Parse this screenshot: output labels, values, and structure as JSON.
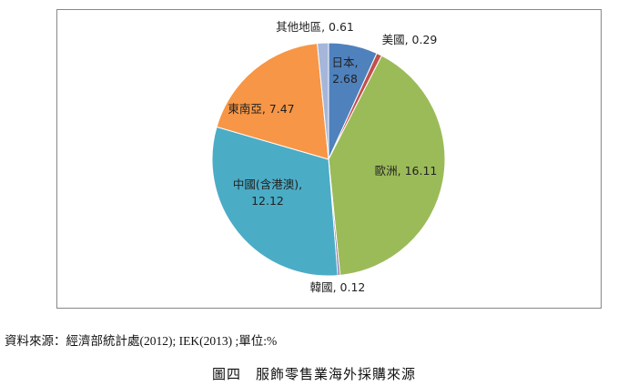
{
  "chart_data": {
    "type": "pie",
    "values": [
      2.68,
      0.29,
      16.11,
      0.12,
      12.12,
      7.47,
      0.61
    ],
    "value_labels": [
      "日本, 2.68",
      "美國, 0.29",
      "歐洲, 16.11",
      "韓國, 0.12",
      "中國(含港澳), 12.12",
      "東南亞, 7.47",
      "其他地區, 0.61"
    ],
    "colors": [
      "#4f81bd",
      "#c0504d",
      "#9bbb59",
      "#8064a2",
      "#4bacc6",
      "#f79646",
      "#a5b6da"
    ]
  },
  "note": "資料來源：經濟部統計處(2012); IEK(2013) ;單位:%",
  "caption": "圖四　服飾零售業海外採購來源"
}
